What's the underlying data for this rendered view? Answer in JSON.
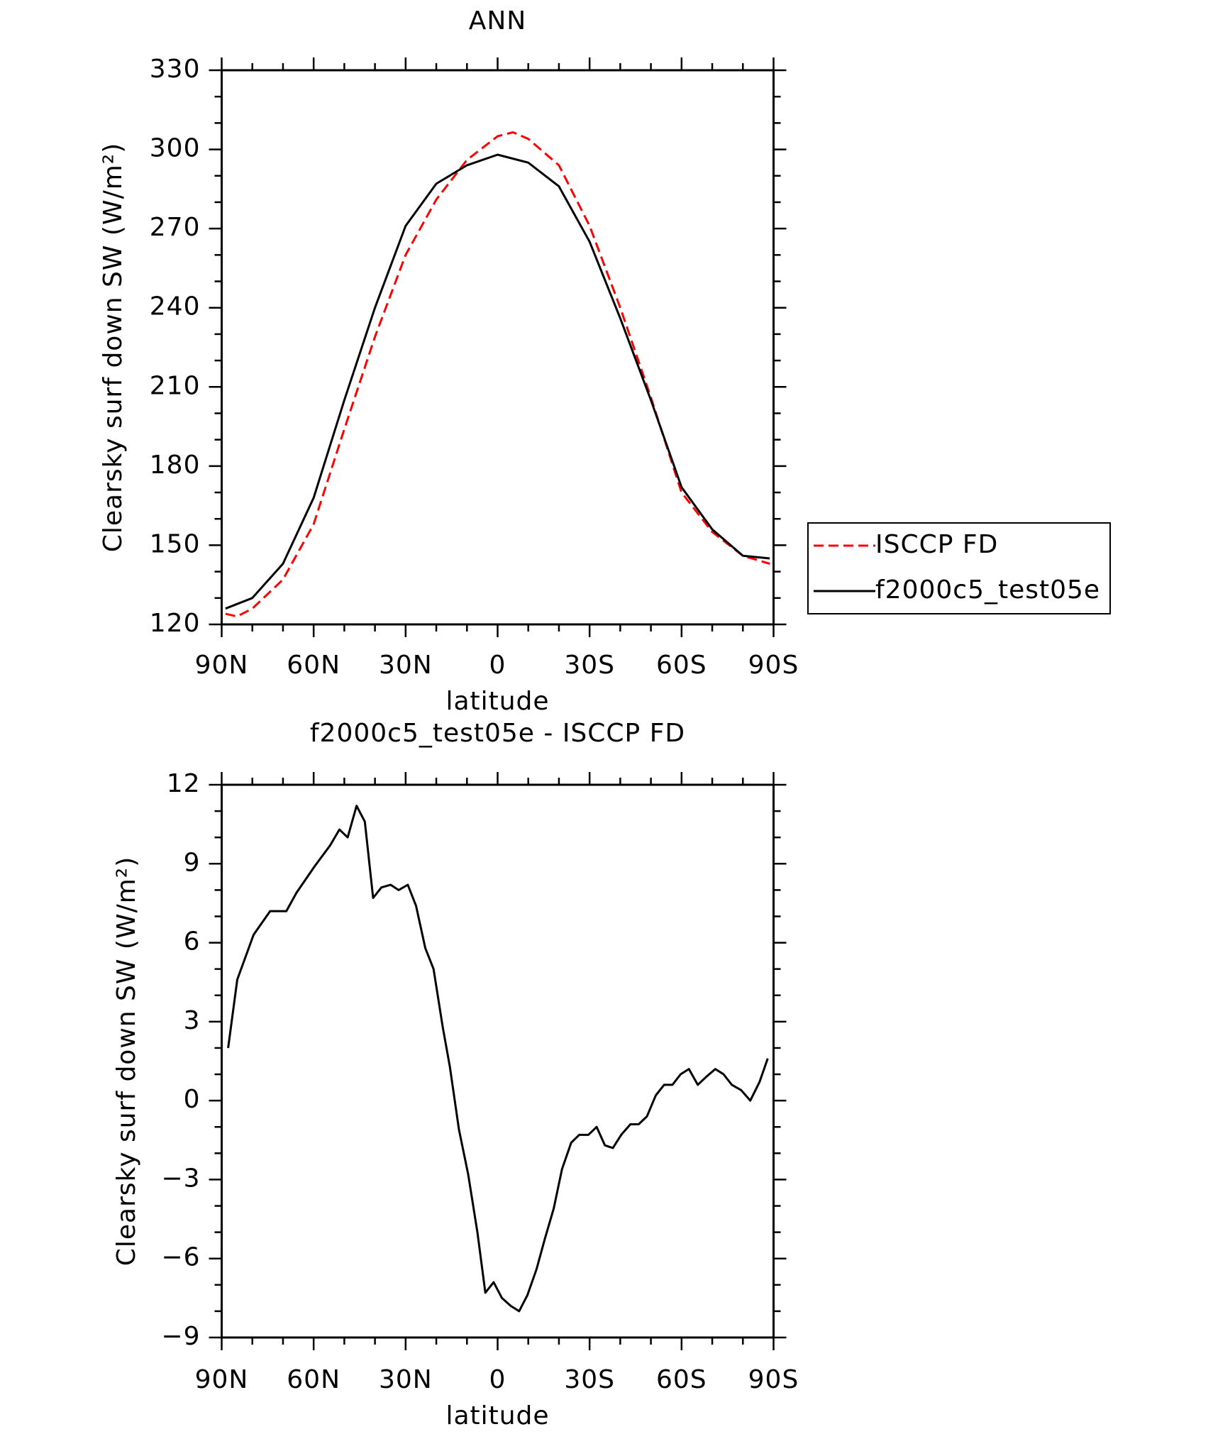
{
  "chart_data": [
    {
      "type": "line",
      "title": "ANN",
      "ylabel": "Clearsky surf down SW (W/m²)",
      "xlabel": "latitude",
      "xlim": [
        90,
        -90
      ],
      "xticks": [
        {
          "value": 90,
          "label": "90N"
        },
        {
          "value": 60,
          "label": "60N"
        },
        {
          "value": 30,
          "label": "30N"
        },
        0,
        {
          "value": -30,
          "label": "30S"
        },
        {
          "value": -60,
          "label": "60S"
        },
        {
          "value": -90,
          "label": "90S"
        }
      ],
      "ylim": [
        120,
        330
      ],
      "yticks": [
        120,
        150,
        180,
        210,
        240,
        270,
        300,
        330
      ],
      "legend": "right",
      "series": [
        {
          "name": "ISCCP FD",
          "color": "#ff0000",
          "dash": true,
          "x": [
            88.75,
            85,
            80,
            70,
            60,
            50,
            40,
            30,
            20,
            10,
            0,
            -5,
            -10,
            -20,
            -30,
            -40,
            -50,
            -60,
            -70,
            -80,
            -88.75
          ],
          "values": [
            124,
            123,
            126,
            137,
            158,
            194,
            229,
            260,
            281,
            296,
            305,
            306.5,
            304,
            294,
            271,
            240,
            206,
            170,
            155,
            146,
            143
          ]
        },
        {
          "name": "f2000c5_test05e",
          "color": "#000000",
          "dash": false,
          "x": [
            88.75,
            80,
            70,
            60,
            50,
            40,
            30,
            20,
            10,
            0,
            -10,
            -20,
            -30,
            -40,
            -50,
            -60,
            -70,
            -80,
            -88.75
          ],
          "values": [
            126,
            130,
            143,
            168,
            205,
            240,
            271,
            287,
            294,
            298,
            295,
            286,
            265,
            236,
            205,
            172,
            156,
            146,
            145
          ]
        }
      ]
    },
    {
      "type": "line",
      "title": "f2000c5_test05e - ISCCP FD",
      "ylabel": "Clearsky surf down SW (W/m²)",
      "xlabel": "latitude",
      "xlim": [
        90,
        -90
      ],
      "xticks": [
        {
          "value": 90,
          "label": "90N"
        },
        {
          "value": 60,
          "label": "60N"
        },
        {
          "value": 30,
          "label": "30N"
        },
        0,
        {
          "value": -30,
          "label": "30S"
        },
        {
          "value": -60,
          "label": "60S"
        },
        {
          "value": -90,
          "label": "90S"
        }
      ],
      "ylim": [
        -9,
        12
      ],
      "yticks": [
        {
          "value": -9,
          "label": "−9"
        },
        {
          "value": -6,
          "label": "−6"
        },
        {
          "value": -3,
          "label": "−3"
        },
        0,
        3,
        6,
        9,
        12
      ],
      "series": [
        {
          "color": "#000000",
          "dash": false,
          "x": [
            87.9,
            84.9,
            79.6,
            74.2,
            68.9,
            65.6,
            59.7,
            54.6,
            51.6,
            48.9,
            46.0,
            43.3,
            40.6,
            37.9,
            34.9,
            32.3,
            29.3,
            26.6,
            23.6,
            20.9,
            17.9,
            15.6,
            12.6,
            9.6,
            6.6,
            4.0,
            1.3,
            -1.4,
            -4.3,
            -7.0,
            -9.7,
            -12.7,
            -15.3,
            -18.3,
            -21.0,
            -24.0,
            -26.6,
            -29.6,
            -32.3,
            -35.0,
            -37.6,
            -40.3,
            -43.3,
            -46.0,
            -48.7,
            -51.6,
            -54.3,
            -57.0,
            -59.7,
            -62.4,
            -65.3,
            -68.0,
            -71.0,
            -73.7,
            -76.4,
            -79.4,
            -82.4,
            -85.4,
            -88.1
          ],
          "values": [
            2.0,
            4.6,
            6.3,
            7.2,
            7.2,
            7.9,
            8.9,
            9.7,
            10.3,
            10.0,
            11.2,
            10.6,
            7.7,
            8.1,
            8.2,
            8.0,
            8.2,
            7.4,
            5.8,
            5.0,
            2.8,
            1.3,
            -1.1,
            -2.8,
            -5.0,
            -7.3,
            -6.9,
            -7.5,
            -7.8,
            -8.0,
            -7.4,
            -6.4,
            -5.3,
            -4.1,
            -2.6,
            -1.6,
            -1.3,
            -1.3,
            -1.0,
            -1.7,
            -1.8,
            -1.3,
            -0.9,
            -0.9,
            -0.6,
            0.2,
            0.6,
            0.6,
            1.0,
            1.2,
            0.6,
            0.9,
            1.2,
            1.0,
            0.6,
            0.4,
            0.0,
            0.7,
            1.6
          ]
        }
      ]
    }
  ]
}
